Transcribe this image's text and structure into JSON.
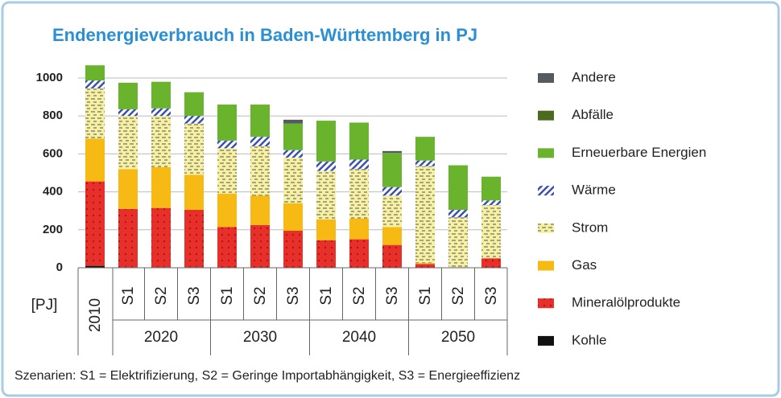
{
  "chart_data": {
    "type": "stacked_bar",
    "title": "Endenergieverbrauch in Baden-Württemberg in PJ",
    "y_unit_label": "[PJ]",
    "footnote": "Szenarien: S1 = Elektrifizierung, S2 = Geringe Importabhängigkeit, S3 = Energieeffizienz",
    "categories": [
      "2010",
      "S1",
      "S2",
      "S3",
      "S1",
      "S2",
      "S3",
      "S1",
      "S2",
      "S3",
      "S1",
      "S2",
      "S3"
    ],
    "groups": [
      "2020",
      "2030",
      "2040",
      "2050"
    ],
    "ylim": [
      0,
      1100
    ],
    "yticks": [
      0,
      200,
      400,
      600,
      800,
      1000
    ],
    "grid": true,
    "series": [
      {
        "name": "Kohle",
        "color": "#111111",
        "pattern": "none",
        "values": [
          10,
          3,
          3,
          3,
          0,
          0,
          0,
          0,
          0,
          0,
          0,
          0,
          0
        ]
      },
      {
        "name": "Mineralölprodukte",
        "color": "#e8302a",
        "pattern": "dots",
        "values": [
          445,
          307,
          312,
          302,
          215,
          225,
          195,
          145,
          150,
          120,
          20,
          0,
          50
        ]
      },
      {
        "name": "Gas",
        "color": "#f7b913",
        "pattern": "none",
        "values": [
          225,
          210,
          215,
          185,
          175,
          155,
          145,
          110,
          110,
          95,
          5,
          0,
          0
        ]
      },
      {
        "name": "Strom",
        "color": "#f6f0a2",
        "pattern": "dash",
        "values": [
          265,
          280,
          270,
          270,
          240,
          260,
          240,
          255,
          260,
          165,
          510,
          265,
          280
        ]
      },
      {
        "name": "Wärme",
        "color": "#ffffff",
        "pattern": "hatch",
        "values": [
          42,
          35,
          40,
          40,
          40,
          50,
          40,
          50,
          50,
          45,
          30,
          40,
          25
        ]
      },
      {
        "name": "Erneuerbare Energien",
        "color": "#6ab42d",
        "pattern": "none",
        "values": [
          80,
          140,
          140,
          125,
          190,
          170,
          140,
          215,
          195,
          180,
          125,
          235,
          125
        ]
      },
      {
        "name": "Abfälle",
        "color": "#4d6b1e",
        "pattern": "none",
        "values": [
          0,
          0,
          0,
          0,
          0,
          0,
          0,
          0,
          0,
          0,
          0,
          0,
          0
        ]
      },
      {
        "name": "Andere",
        "color": "#555a5e",
        "pattern": "none",
        "values": [
          0,
          0,
          0,
          0,
          0,
          0,
          20,
          0,
          0,
          10,
          0,
          0,
          0
        ]
      }
    ]
  }
}
